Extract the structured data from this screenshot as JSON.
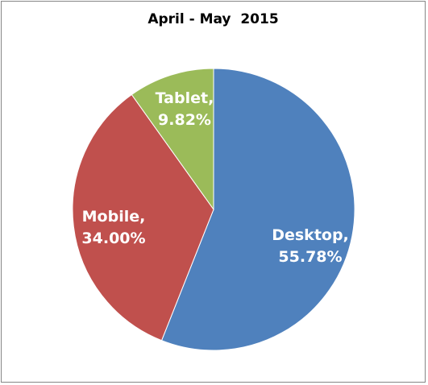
{
  "chart_data": {
    "type": "pie",
    "title": "April - May  2015",
    "slices": [
      {
        "label": "Desktop",
        "value": 55.78,
        "display": "55.78%",
        "color": "#4f81bd"
      },
      {
        "label": "Mobile",
        "value": 34.0,
        "display": "34.00%",
        "color": "#c0504d"
      },
      {
        "label": "Tablet",
        "value": 9.82,
        "display": "9.82%",
        "color": "#9bbb59"
      }
    ],
    "start_angle_deg": 0,
    "direction": "clockwise",
    "legend": "none",
    "border_color": "#868686"
  }
}
